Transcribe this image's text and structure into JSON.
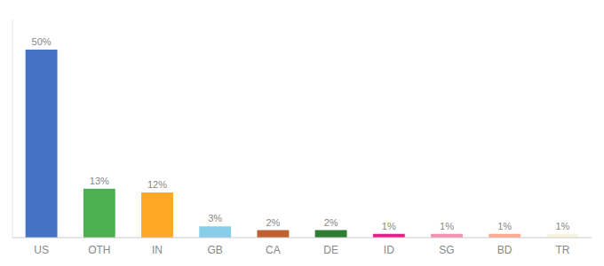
{
  "chart_data": {
    "type": "bar",
    "categories": [
      "US",
      "OTH",
      "IN",
      "GB",
      "CA",
      "DE",
      "ID",
      "SG",
      "BD",
      "TR"
    ],
    "values": [
      50,
      13,
      12,
      3,
      2,
      2,
      1,
      1,
      1,
      1
    ],
    "value_labels": [
      "50%",
      "13%",
      "12%",
      "3%",
      "2%",
      "2%",
      "1%",
      "1%",
      "1%",
      "1%"
    ],
    "colors": [
      "#4472C4",
      "#4CAF50",
      "#FFA726",
      "#87CEEB",
      "#BF6030",
      "#2E7D32",
      "#E91E8C",
      "#F48FB1",
      "#FFAB91",
      "#F5F5DC"
    ],
    "ylim": [
      0,
      58
    ],
    "data_labels": true,
    "tick_labels": "x",
    "grid": false
  }
}
